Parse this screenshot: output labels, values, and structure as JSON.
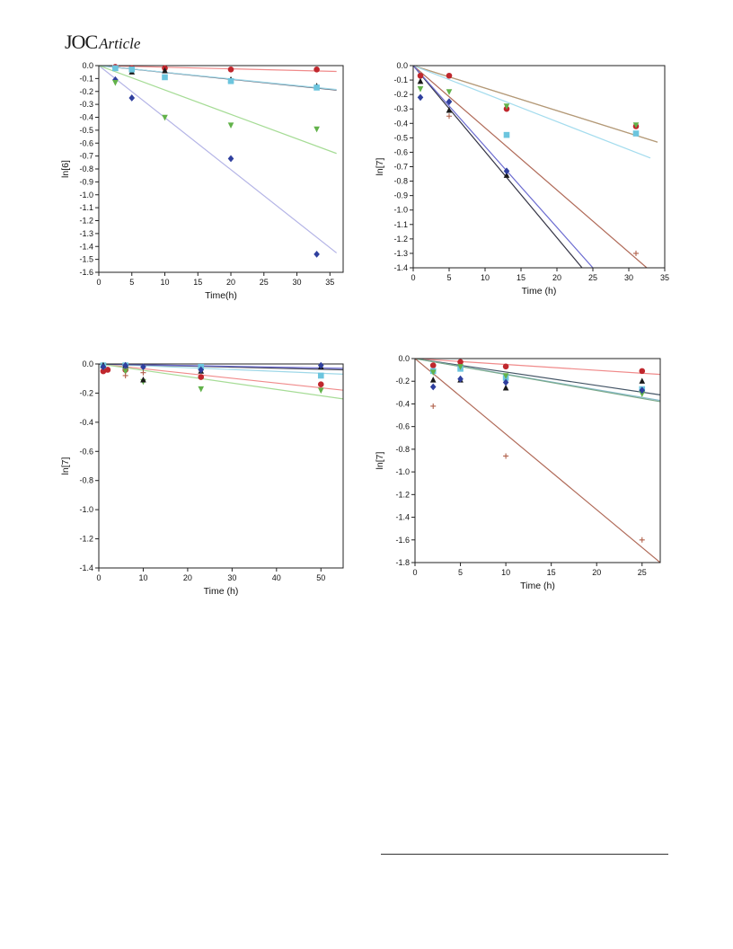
{
  "header": {
    "journal": "JOC",
    "article_type": "Article"
  },
  "chart_data": [
    {
      "id": "a",
      "type": "scatter",
      "xlabel": "Time(h)",
      "ylabel": "ln[6]",
      "xlim": [
        0,
        37
      ],
      "ylim": [
        -1.6,
        0.0
      ],
      "xticks": [
        0,
        5,
        10,
        15,
        20,
        25,
        30,
        35
      ],
      "yticks": [
        0.0,
        -0.1,
        -0.2,
        -0.3,
        -0.4,
        -0.5,
        -0.6,
        -0.7,
        -0.8,
        -0.9,
        -1.0,
        -1.1,
        -1.2,
        -1.3,
        -1.4,
        -1.5,
        -1.6
      ],
      "tick_decimals": [
        0,
        1
      ],
      "series": [
        {
          "marker": "circle",
          "color": "#c0272d",
          "line_color": "#f08a8a",
          "points": [
            [
              2.5,
              -0.01
            ],
            [
              5,
              -0.02
            ],
            [
              10,
              -0.02
            ],
            [
              20,
              -0.03
            ],
            [
              33,
              -0.03
            ]
          ],
          "fit": [
            [
              0,
              0
            ],
            [
              36,
              -0.045
            ]
          ]
        },
        {
          "marker": "triangle-up",
          "color": "#1a1a1a",
          "line_color": "#555566",
          "points": [
            [
              2.5,
              -0.02
            ],
            [
              5,
              -0.05
            ],
            [
              10,
              -0.04
            ],
            [
              20,
              -0.11
            ],
            [
              33,
              -0.16
            ]
          ],
          "fit": [
            [
              0,
              0
            ],
            [
              36,
              -0.19
            ]
          ]
        },
        {
          "marker": "square",
          "color": "#6cc5de",
          "line_color": "#9fd8e8",
          "points": [
            [
              2.5,
              -0.02
            ],
            [
              5,
              -0.03
            ],
            [
              10,
              -0.09
            ],
            [
              20,
              -0.12
            ],
            [
              33,
              -0.17
            ]
          ],
          "fit": [
            [
              0,
              0
            ],
            [
              36,
              -0.185
            ]
          ]
        },
        {
          "marker": "diamond",
          "color": "#2f3f9e",
          "line_color": "#b4b4e6",
          "points": [
            [
              2.5,
              -0.11
            ],
            [
              5,
              -0.25
            ],
            [
              20,
              -0.72
            ],
            [
              33,
              -1.46
            ]
          ],
          "fit": [
            [
              0,
              0
            ],
            [
              36,
              -1.45
            ]
          ]
        },
        {
          "marker": "triangle-down",
          "color": "#62b24a",
          "line_color": "#a6dc96",
          "points": [
            [
              2.5,
              -0.13
            ],
            [
              10,
              -0.4
            ],
            [
              20,
              -0.46
            ],
            [
              33,
              -0.49
            ]
          ],
          "fit": [
            [
              0,
              0
            ],
            [
              36,
              -0.68
            ]
          ]
        }
      ]
    },
    {
      "id": "b",
      "type": "scatter",
      "xlabel": "Time (h)",
      "ylabel": "ln[7]",
      "xlim": [
        0,
        35
      ],
      "ylim": [
        -1.4,
        0.0
      ],
      "xticks": [
        0,
        5,
        10,
        15,
        20,
        25,
        30,
        35
      ],
      "yticks": [
        0.0,
        -0.1,
        -0.2,
        -0.3,
        -0.4,
        -0.5,
        -0.6,
        -0.7,
        -0.8,
        -0.9,
        -1.0,
        -1.1,
        -1.2,
        -1.3,
        -1.4
      ],
      "tick_decimals": [
        0,
        1
      ],
      "series": [
        {
          "marker": "circle",
          "color": "#c0272d",
          "line_color": "#b49a78",
          "points": [
            [
              1,
              -0.07
            ],
            [
              5,
              -0.07
            ],
            [
              13,
              -0.3
            ],
            [
              31,
              -0.42
            ]
          ],
          "fit": [
            [
              0,
              0
            ],
            [
              34,
              -0.53
            ]
          ]
        },
        {
          "marker": "triangle-down",
          "color": "#62b24a",
          "line_color": "#b49a78",
          "points": [
            [
              1,
              -0.16
            ],
            [
              5,
              -0.18
            ],
            [
              13,
              -0.28
            ],
            [
              31,
              -0.41
            ]
          ],
          "fit": [
            [
              0,
              0
            ],
            [
              34,
              -0.53
            ]
          ]
        },
        {
          "marker": "square",
          "color": "#6cc5de",
          "line_color": "#a4dcee",
          "points": [
            [
              13,
              -0.48
            ],
            [
              31,
              -0.47
            ]
          ],
          "fit": [
            [
              0,
              0
            ],
            [
              33,
              -0.64
            ]
          ]
        },
        {
          "marker": "plus",
          "color": "#b0604a",
          "line_color": "#b06a58",
          "points": [
            [
              5,
              -0.35
            ],
            [
              31,
              -1.3
            ]
          ],
          "fit": [
            [
              0,
              0
            ],
            [
              32.5,
              -1.4
            ]
          ]
        },
        {
          "marker": "triangle-up",
          "color": "#1a1a1a",
          "line_color": "#333344",
          "points": [
            [
              1,
              -0.11
            ],
            [
              5,
              -0.31
            ],
            [
              13,
              -0.76
            ]
          ],
          "fit": [
            [
              0,
              0
            ],
            [
              23.5,
              -1.4
            ]
          ]
        },
        {
          "marker": "diamond",
          "color": "#2f3f9e",
          "line_color": "#6a6ad0",
          "points": [
            [
              1,
              -0.22
            ],
            [
              5,
              -0.25
            ],
            [
              13,
              -0.73
            ]
          ],
          "fit": [
            [
              0,
              0
            ],
            [
              25,
              -1.4
            ]
          ]
        }
      ]
    },
    {
      "id": "c",
      "type": "scatter",
      "xlabel": "Time (h)",
      "ylabel": "ln[7]",
      "xlim": [
        0,
        55
      ],
      "ylim": [
        -1.4,
        0.0
      ],
      "xticks": [
        0,
        10,
        20,
        30,
        40,
        50
      ],
      "yticks": [
        0.0,
        -0.2,
        -0.4,
        -0.6,
        -0.8,
        -1.0,
        -1.2,
        -1.4
      ],
      "tick_decimals": [
        0,
        1
      ],
      "series": [
        {
          "marker": "circle",
          "color": "#c0272d",
          "line_color": "#f08a8a",
          "points": [
            [
              1,
              -0.05
            ],
            [
              2,
              -0.04
            ],
            [
              6,
              -0.04
            ],
            [
              23,
              -0.09
            ],
            [
              50,
              -0.14
            ]
          ],
          "fit": [
            [
              0,
              0
            ],
            [
              55,
              -0.18
            ]
          ]
        },
        {
          "marker": "triangle-down",
          "color": "#62b24a",
          "line_color": "#a6dc96",
          "points": [
            [
              1,
              -0.02
            ],
            [
              6,
              -0.05
            ],
            [
              10,
              -0.12
            ],
            [
              23,
              -0.17
            ],
            [
              50,
              -0.18
            ]
          ],
          "fit": [
            [
              0,
              0
            ],
            [
              55,
              -0.24
            ]
          ]
        },
        {
          "marker": "square",
          "color": "#6cc5de",
          "line_color": "#9fd8e8",
          "points": [
            [
              1,
              -0.01
            ],
            [
              6,
              -0.01
            ],
            [
              23,
              -0.02
            ],
            [
              50,
              -0.08
            ]
          ],
          "fit": [
            [
              0,
              0
            ],
            [
              55,
              -0.07
            ]
          ]
        },
        {
          "marker": "triangle-up",
          "color": "#1a1a1a",
          "line_color": "#444455",
          "points": [
            [
              1,
              -0.01
            ],
            [
              6,
              -0.01
            ],
            [
              10,
              -0.11
            ],
            [
              23,
              -0.05
            ],
            [
              50,
              -0.02
            ]
          ],
          "fit": [
            [
              0,
              0
            ],
            [
              55,
              -0.04
            ]
          ]
        },
        {
          "marker": "diamond",
          "color": "#2f3f9e",
          "line_color": "#6a6ad0",
          "points": [
            [
              1,
              -0.02
            ],
            [
              6,
              -0.01
            ],
            [
              10,
              -0.02
            ],
            [
              23,
              -0.04
            ],
            [
              50,
              -0.01
            ]
          ],
          "fit": [
            [
              0,
              0
            ],
            [
              55,
              -0.03
            ]
          ]
        },
        {
          "marker": "plus",
          "color": "#b0604a",
          "line_color": "#b06a58",
          "points": [
            [
              6,
              -0.08
            ],
            [
              10,
              -0.06
            ]
          ],
          "fit": []
        }
      ]
    },
    {
      "id": "d",
      "type": "scatter",
      "xlabel": "Time (h)",
      "ylabel": "ln[7]",
      "xlim": [
        0,
        27
      ],
      "ylim": [
        -1.8,
        0.0
      ],
      "xticks": [
        0,
        5,
        10,
        15,
        20,
        25
      ],
      "yticks": [
        0.0,
        -0.2,
        -0.4,
        -0.6,
        -0.8,
        -1.0,
        -1.2,
        -1.4,
        -1.6,
        -1.8
      ],
      "tick_decimals": [
        0,
        1
      ],
      "series": [
        {
          "marker": "circle",
          "color": "#c0272d",
          "line_color": "#f08a8a",
          "points": [
            [
              2,
              -0.06
            ],
            [
              5,
              -0.03
            ],
            [
              10,
              -0.07
            ],
            [
              25,
              -0.11
            ]
          ],
          "fit": [
            [
              0,
              0
            ],
            [
              27,
              -0.14
            ]
          ]
        },
        {
          "marker": "triangle-up",
          "color": "#1a1a1a",
          "line_color": "#445566",
          "points": [
            [
              2,
              -0.19
            ],
            [
              5,
              -0.19
            ],
            [
              10,
              -0.26
            ],
            [
              25,
              -0.2
            ]
          ],
          "fit": [
            [
              0,
              0
            ],
            [
              27,
              -0.32
            ]
          ]
        },
        {
          "marker": "square",
          "color": "#6cc5de",
          "line_color": "#88bccc",
          "points": [
            [
              2,
              -0.11
            ],
            [
              5,
              -0.09
            ],
            [
              10,
              -0.17
            ],
            [
              25,
              -0.27
            ]
          ],
          "fit": [
            [
              0,
              0
            ],
            [
              27,
              -0.37
            ]
          ]
        },
        {
          "marker": "triangle-down",
          "color": "#62b24a",
          "line_color": "#7aa88a",
          "points": [
            [
              2,
              -0.12
            ],
            [
              5,
              -0.07
            ],
            [
              10,
              -0.15
            ],
            [
              25,
              -0.31
            ]
          ],
          "fit": [
            [
              0,
              0
            ],
            [
              27,
              -0.38
            ]
          ]
        },
        {
          "marker": "diamond",
          "color": "#2f3f9e",
          "line_color": "#6a6ad0",
          "points": [
            [
              2,
              -0.25
            ],
            [
              5,
              -0.18
            ],
            [
              10,
              -0.21
            ],
            [
              25,
              -0.28
            ]
          ],
          "fit": []
        },
        {
          "marker": "plus",
          "color": "#b0604a",
          "line_color": "#b06a58",
          "points": [
            [
              2,
              -0.42
            ],
            [
              10,
              -0.86
            ],
            [
              25,
              -1.6
            ]
          ],
          "fit": [
            [
              0,
              0
            ],
            [
              27,
              -1.8
            ]
          ]
        }
      ]
    }
  ]
}
